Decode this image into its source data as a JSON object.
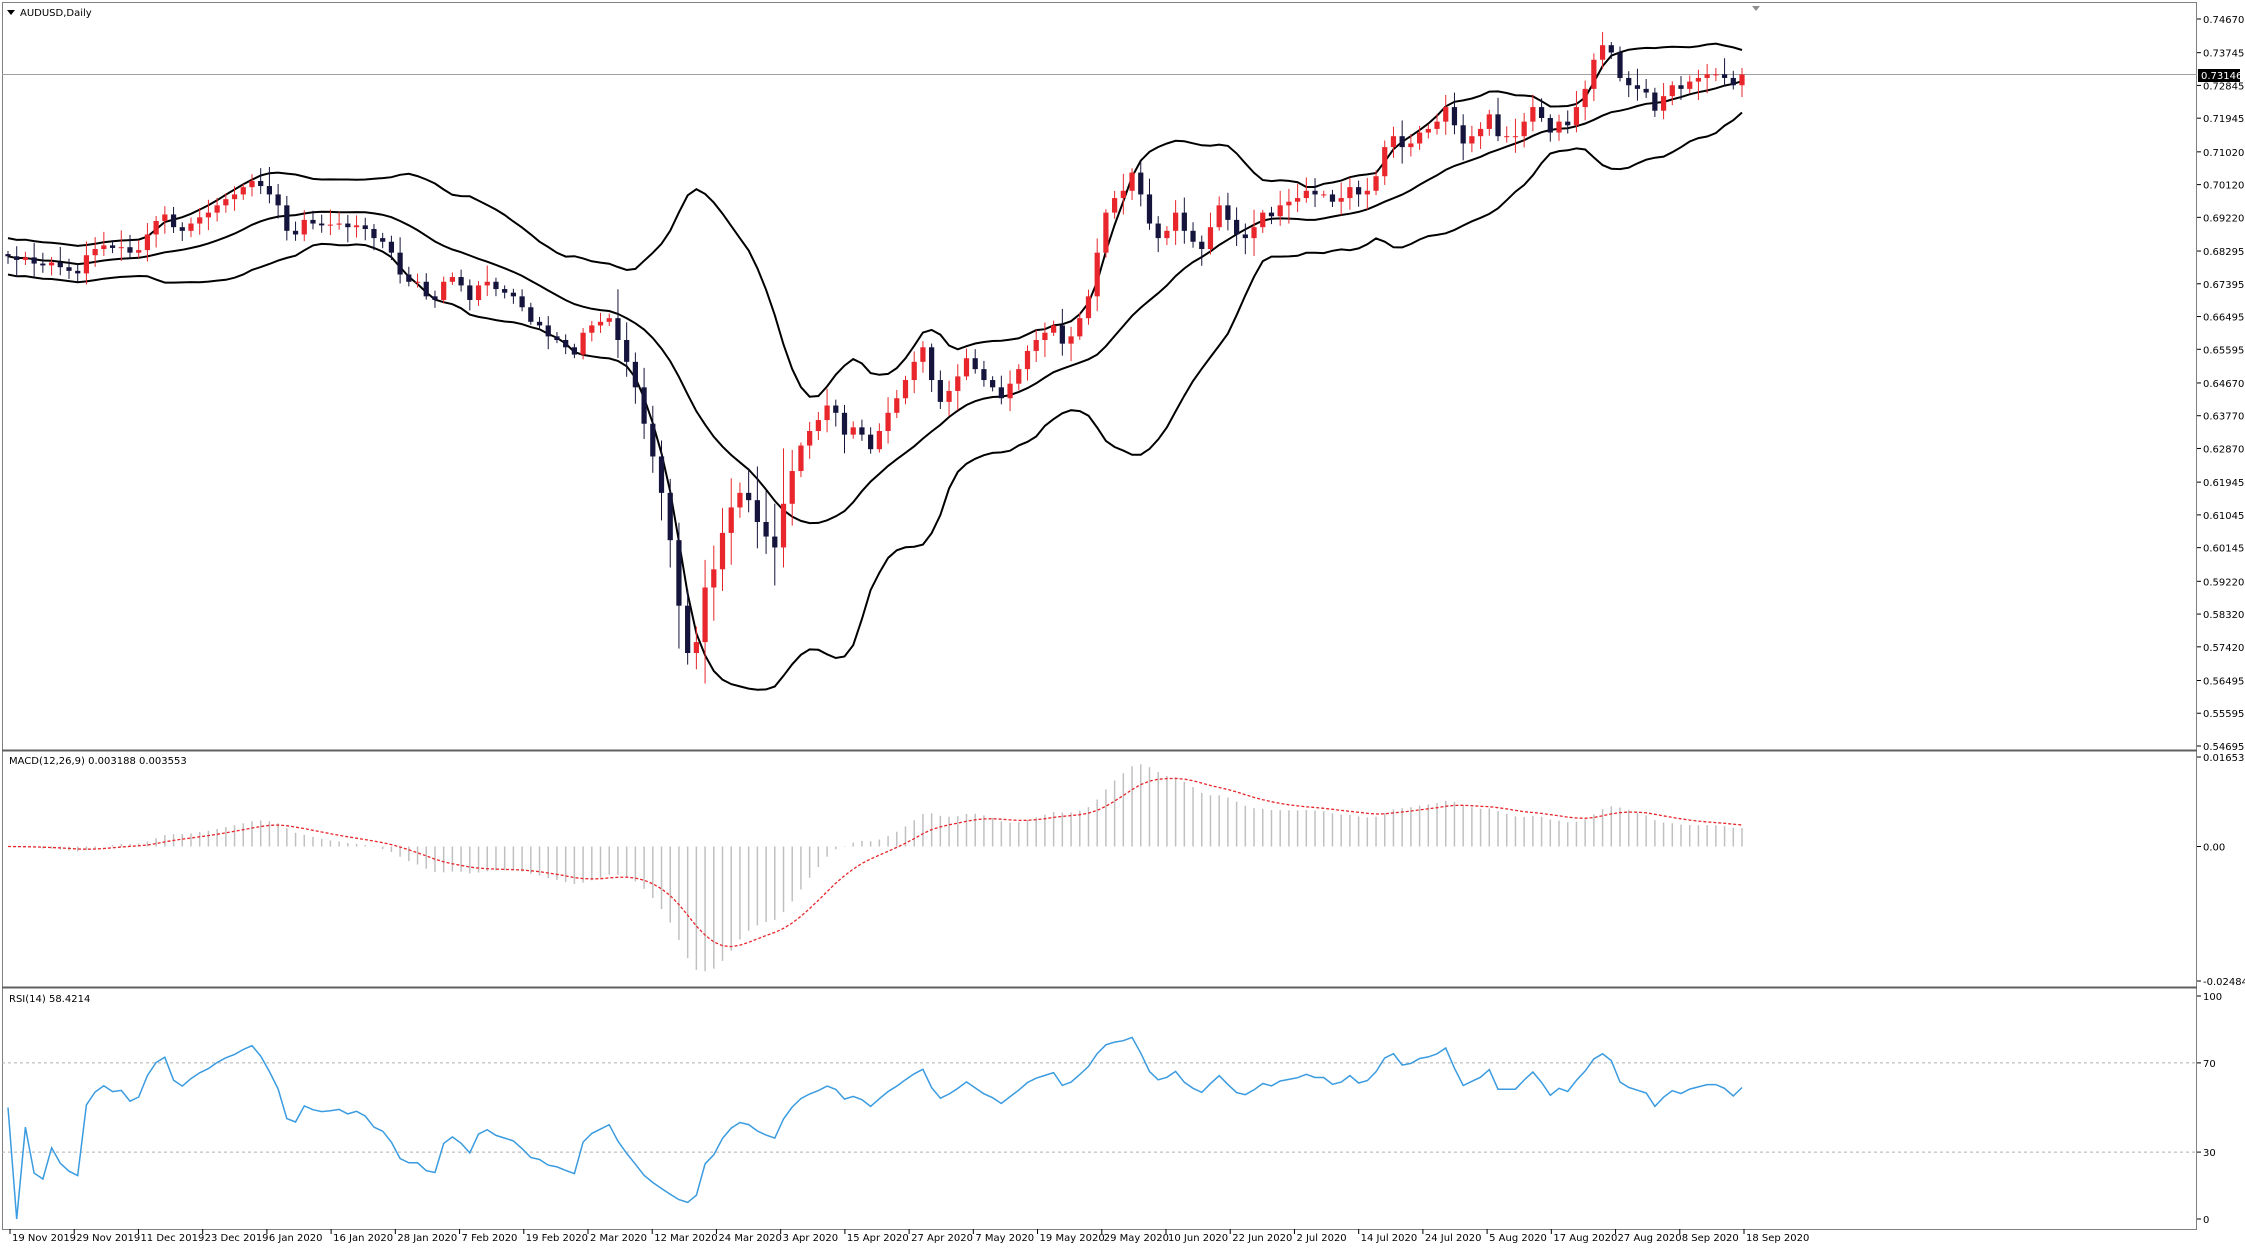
{
  "window": {
    "symbol_label": "AUDUSD,Daily"
  },
  "colors": {
    "bull": "#e8262b",
    "bear": "#14143c",
    "band": "#000000",
    "macd_hist": "#c0c0c0",
    "macd_signal": "#e8262b",
    "rsi": "#3a9be0",
    "grid_level": "#a0a0a0",
    "price_tag_bg": "#000000",
    "price_tag_text": "#ffffff"
  },
  "price_axis": {
    "ticks": [
      "0.74670",
      "0.73745",
      "0.72845",
      "0.71945",
      "0.71020",
      "0.70120",
      "0.69220",
      "0.68295",
      "0.67395",
      "0.66495",
      "0.65595",
      "0.64670",
      "0.63770",
      "0.62870",
      "0.61945",
      "0.61045",
      "0.60145",
      "0.59220",
      "0.58320",
      "0.57420",
      "0.56495",
      "0.55595",
      "0.54695"
    ],
    "current_price": "0.73146"
  },
  "macd": {
    "label": "MACD(12,26,9) 0.003188 0.003553",
    "ticks": [
      "0.016538",
      "0.00",
      "-0.024849"
    ]
  },
  "rsi": {
    "label": "RSI(14) 58.4214",
    "ticks": [
      "100",
      "70",
      "30",
      "0"
    ]
  },
  "date_axis": {
    "labels": [
      "19 Nov 2019",
      "29 Nov 2019",
      "11 Dec 2019",
      "23 Dec 2019",
      "6 Jan 2020",
      "16 Jan 2020",
      "28 Jan 2020",
      "7 Feb 2020",
      "19 Feb 2020",
      "2 Mar 2020",
      "12 Mar 2020",
      "24 Mar 2020",
      "3 Apr 2020",
      "15 Apr 2020",
      "27 Apr 2020",
      "7 May 2020",
      "19 May 2020",
      "29 May 2020",
      "10 Jun 2020",
      "22 Jun 2020",
      "2 Jul 2020",
      "14 Jul 2020",
      "24 Jul 2020",
      "5 Aug 2020",
      "17 Aug 2020",
      "27 Aug 2020",
      "8 Sep 2020",
      "18 Sep 2020"
    ]
  },
  "chart_data": {
    "type": "candlestick",
    "title": "AUDUSD,Daily",
    "ylim": [
      0.5445,
      0.7504
    ],
    "closes": [
      0.6815,
      0.6805,
      0.6812,
      0.6795,
      0.679,
      0.6798,
      0.6785,
      0.6775,
      0.6768,
      0.6818,
      0.6835,
      0.6845,
      0.6838,
      0.684,
      0.6825,
      0.6832,
      0.6875,
      0.6912,
      0.693,
      0.6895,
      0.6885,
      0.6905,
      0.6922,
      0.6935,
      0.6955,
      0.6972,
      0.6985,
      0.7005,
      0.7022,
      0.7008,
      0.6985,
      0.6955,
      0.6885,
      0.6875,
      0.6915,
      0.6905,
      0.69,
      0.6902,
      0.6905,
      0.6895,
      0.69,
      0.689,
      0.6865,
      0.6855,
      0.6825,
      0.6765,
      0.6745,
      0.6745,
      0.6705,
      0.6695,
      0.6745,
      0.6758,
      0.6735,
      0.6695,
      0.6735,
      0.6745,
      0.6725,
      0.6715,
      0.6705,
      0.6675,
      0.6635,
      0.6625,
      0.6595,
      0.6585,
      0.6565,
      0.6545,
      0.6605,
      0.6625,
      0.6635,
      0.6645,
      0.6585,
      0.6525,
      0.6455,
      0.6355,
      0.6265,
      0.6165,
      0.6035,
      0.5855,
      0.5725,
      0.5755,
      0.5905,
      0.5955,
      0.6055,
      0.6125,
      0.6165,
      0.6145,
      0.6085,
      0.6045,
      0.6015,
      0.6135,
      0.6225,
      0.6295,
      0.6335,
      0.6365,
      0.6405,
      0.6385,
      0.6325,
      0.6345,
      0.6325,
      0.6285,
      0.6335,
      0.6385,
      0.6425,
      0.6475,
      0.6525,
      0.6565,
      0.6475,
      0.6415,
      0.6445,
      0.6485,
      0.6535,
      0.6505,
      0.6475,
      0.6455,
      0.6425,
      0.6465,
      0.6505,
      0.6555,
      0.6585,
      0.6605,
      0.6625,
      0.6575,
      0.6595,
      0.6645,
      0.6705,
      0.6825,
      0.6935,
      0.6975,
      0.6995,
      0.7045,
      0.6985,
      0.6905,
      0.6865,
      0.6885,
      0.6935,
      0.6885,
      0.6855,
      0.6835,
      0.6895,
      0.6955,
      0.6915,
      0.6875,
      0.6865,
      0.6895,
      0.6935,
      0.6925,
      0.6955,
      0.6965,
      0.6975,
      0.6995,
      0.6985,
      0.6985,
      0.6965,
      0.6975,
      0.7005,
      0.6985,
      0.6995,
      0.7035,
      0.7115,
      0.7145,
      0.7115,
      0.7125,
      0.7155,
      0.7165,
      0.7185,
      0.7225,
      0.7175,
      0.7125,
      0.7145,
      0.7165,
      0.7205,
      0.7145,
      0.7145,
      0.7145,
      0.7185,
      0.7225,
      0.7195,
      0.7155,
      0.7185,
      0.7175,
      0.7225,
      0.7275,
      0.7355,
      0.7395,
      0.7375,
      0.7305,
      0.7285,
      0.7275,
      0.7265,
      0.7215,
      0.7255,
      0.7285,
      0.7275,
      0.7295,
      0.7305,
      0.7315,
      0.7315,
      0.7305,
      0.7285,
      0.73146
    ],
    "bands": {
      "period": 20,
      "deviation": 2
    },
    "macd_params": [
      12,
      26,
      9
    ],
    "rsi_period": 14,
    "rsi_levels": [
      70,
      30
    ]
  }
}
